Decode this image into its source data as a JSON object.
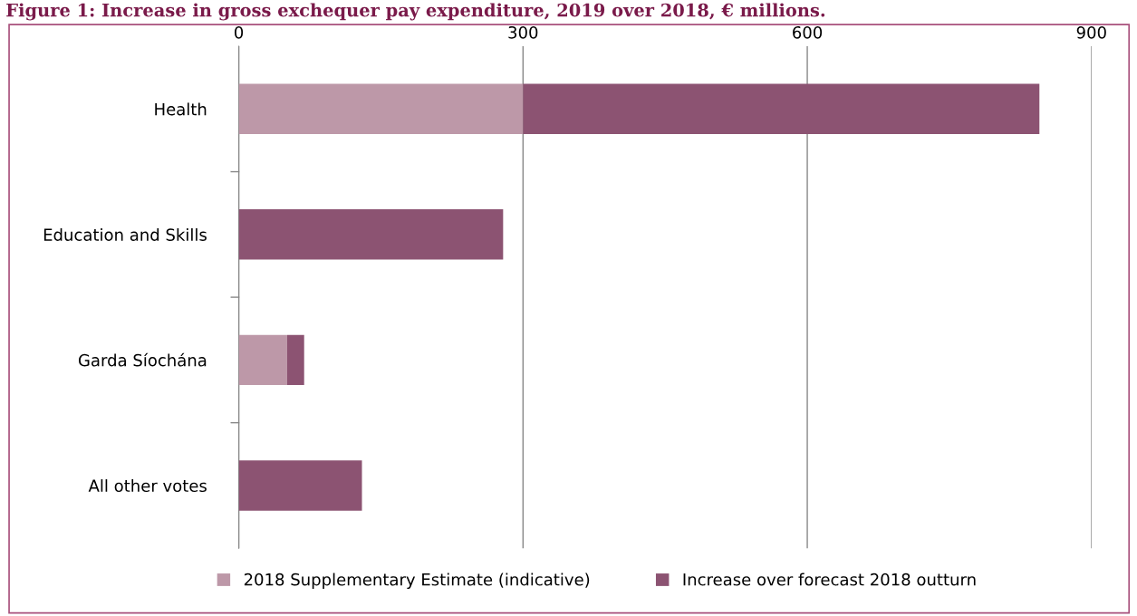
{
  "chart_data": {
    "type": "bar",
    "orientation": "horizontal",
    "stacked": true,
    "title": "Figure 1: Increase in gross exchequer pay expenditure, 2019 over 2018, € millions.",
    "categories": [
      "Health",
      "Education and Skills",
      "Garda Síochána",
      "All other votes"
    ],
    "series": [
      {
        "name": "2018 Supplementary Estimate (indicative)",
        "color": "#bd98a8",
        "values": [
          300,
          0,
          51,
          0
        ]
      },
      {
        "name": "Increase over forecast 2018 outturn",
        "color": "#8c5372",
        "values": [
          545,
          279,
          18,
          130
        ]
      }
    ],
    "xlim": [
      0,
      900
    ],
    "xticks": [
      0,
      300,
      600,
      900
    ],
    "grid": "x",
    "legend": "bottom"
  }
}
